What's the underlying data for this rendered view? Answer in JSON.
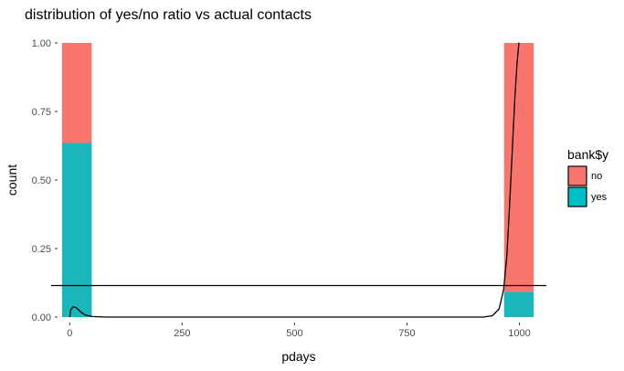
{
  "chart_data": {
    "type": "bar",
    "title": "distribution of yes/no ratio vs actual contacts",
    "xlabel": "pdays",
    "ylabel": "count",
    "xlim": [
      -25,
      1060
    ],
    "ylim": [
      0,
      1.0
    ],
    "x_ticks": [
      0,
      250,
      500,
      750,
      1000
    ],
    "y_ticks": [
      0.0,
      0.25,
      0.5,
      0.75,
      1.0
    ],
    "x_tick_labels": [
      "0",
      "250",
      "500",
      "750",
      "1000"
    ],
    "y_tick_labels": [
      "0.00",
      "0.25",
      "0.50",
      "0.75",
      "1.00"
    ],
    "bar_position": "fill",
    "bar_width": 66,
    "bars": [
      {
        "x": 16,
        "yes": 0.635,
        "no": 0.365
      },
      {
        "x": 999,
        "yes": 0.092,
        "no": 0.908
      }
    ],
    "hline": {
      "y": 0.115
    },
    "density": [
      [
        0,
        0.0
      ],
      [
        2,
        0.025
      ],
      [
        8,
        0.038
      ],
      [
        15,
        0.034
      ],
      [
        25,
        0.018
      ],
      [
        35,
        0.007
      ],
      [
        50,
        0.002
      ],
      [
        80,
        0.0
      ],
      [
        920,
        0.0
      ],
      [
        940,
        0.005
      ],
      [
        955,
        0.03
      ],
      [
        965,
        0.1
      ],
      [
        972,
        0.22
      ],
      [
        978,
        0.4
      ],
      [
        984,
        0.6
      ],
      [
        990,
        0.8
      ],
      [
        995,
        0.93
      ],
      [
        999,
        1.0
      ],
      [
        1000,
        1.0
      ]
    ],
    "legend": {
      "title": "bank$y",
      "position": "right",
      "entries": [
        {
          "label": "no",
          "color": "#F8766D"
        },
        {
          "label": "yes",
          "color": "#00BFC4"
        }
      ]
    },
    "colors": {
      "no": "#F8766D",
      "yes": "#1BB6BA",
      "line": "#000000"
    },
    "grid": false
  }
}
